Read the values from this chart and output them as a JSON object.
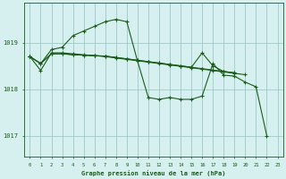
{
  "bg_color": "#d6f0f0",
  "grid_color": "#a0c8c8",
  "line_color": "#1a5c1a",
  "marker_color": "#1a5c1a",
  "xlabel": "Graphe pression niveau de la mer (hPa)",
  "xlabel_color": "#1a5c1a",
  "ylabel_ticks": [
    1017,
    1018,
    1019
  ],
  "xlim": [
    -0.5,
    23.5
  ],
  "ylim": [
    1016.55,
    1019.85
  ],
  "xtick_labels": [
    "0",
    "1",
    "2",
    "3",
    "4",
    "5",
    "6",
    "7",
    "8",
    "9",
    "10",
    "11",
    "12",
    "13",
    "14",
    "15",
    "16",
    "17",
    "18",
    "19",
    "20",
    "21",
    "22",
    "23"
  ],
  "series1_x": [
    0,
    1,
    2,
    3,
    4,
    5,
    6,
    7,
    8,
    9,
    10,
    11,
    12,
    13,
    14,
    15,
    16,
    17,
    18,
    19,
    20,
    21,
    22
  ],
  "series1_y": [
    1018.7,
    1018.55,
    1018.85,
    1018.9,
    1019.15,
    1019.25,
    1019.35,
    1019.45,
    1019.5,
    1019.45,
    1018.6,
    1017.82,
    1017.78,
    1017.82,
    1017.78,
    1017.78,
    1017.85,
    1018.55,
    1018.3,
    1018.28,
    1018.15,
    1018.05,
    1017.0
  ],
  "series2_x": [
    0,
    1,
    2,
    3,
    4,
    5,
    6,
    7,
    8,
    9,
    10,
    11,
    12,
    13,
    14,
    15,
    16,
    17,
    18,
    19,
    20
  ],
  "series2_y": [
    1018.7,
    1018.4,
    1018.78,
    1018.78,
    1018.76,
    1018.74,
    1018.72,
    1018.7,
    1018.67,
    1018.64,
    1018.61,
    1018.58,
    1018.55,
    1018.52,
    1018.49,
    1018.46,
    1018.43,
    1018.4,
    1018.37,
    1018.34,
    1018.31
  ],
  "series3_x": [
    0,
    1,
    2,
    3,
    4,
    5,
    6,
    7,
    8,
    9,
    10,
    11,
    12,
    13,
    14,
    15,
    16,
    17,
    18,
    19
  ],
  "series3_y": [
    1018.7,
    1018.55,
    1018.76,
    1018.76,
    1018.74,
    1018.73,
    1018.72,
    1018.71,
    1018.68,
    1018.65,
    1018.62,
    1018.59,
    1018.56,
    1018.53,
    1018.5,
    1018.47,
    1018.44,
    1018.41,
    1018.38,
    1018.35
  ],
  "series4_x": [
    0,
    1,
    2,
    3,
    4,
    5,
    6,
    7,
    8,
    9,
    10,
    11,
    12,
    13,
    14,
    15,
    16,
    17,
    18,
    19
  ],
  "series4_y": [
    1018.7,
    1018.55,
    1018.76,
    1018.76,
    1018.74,
    1018.73,
    1018.72,
    1018.71,
    1018.68,
    1018.65,
    1018.62,
    1018.59,
    1018.56,
    1018.53,
    1018.5,
    1018.47,
    1018.78,
    1018.5,
    1018.38,
    1018.35
  ]
}
